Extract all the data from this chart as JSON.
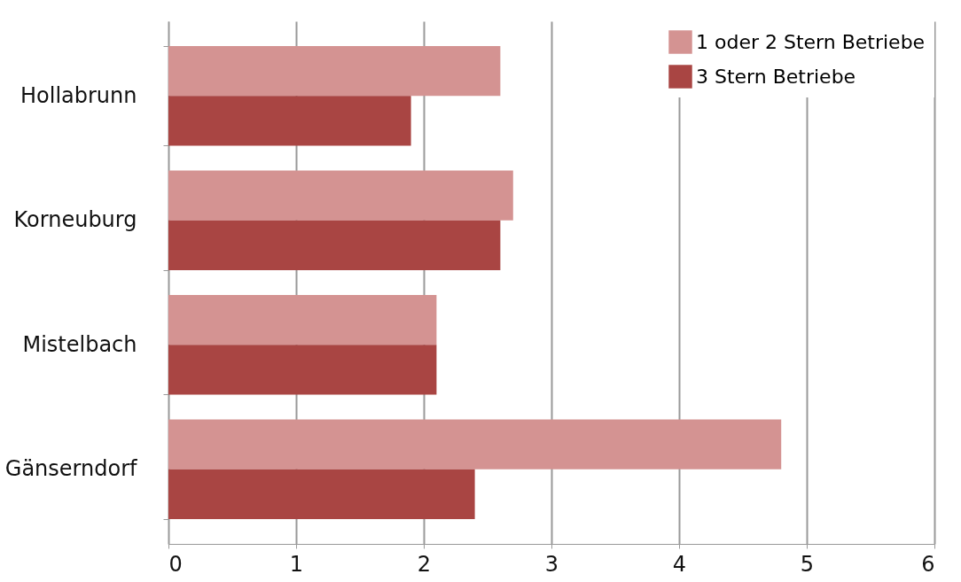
{
  "chart_data": {
    "type": "bar",
    "orientation": "horizontal",
    "categories": [
      "Hollabrunn",
      "Korneuburg",
      "Mistelbach",
      "Gänserndorf"
    ],
    "series": [
      {
        "name": "1 oder 2 Stern Betriebe",
        "color": "#d49392",
        "values": [
          2.6,
          2.7,
          2.1,
          4.8
        ]
      },
      {
        "name": "3 Stern Betriebe",
        "color": "#a94543",
        "values": [
          1.9,
          2.6,
          2.1,
          2.4
        ]
      }
    ],
    "xlim": [
      0,
      6
    ],
    "xticks": [
      0,
      1,
      2,
      3,
      4,
      5,
      6
    ],
    "grid": "x",
    "legend": "top right"
  }
}
